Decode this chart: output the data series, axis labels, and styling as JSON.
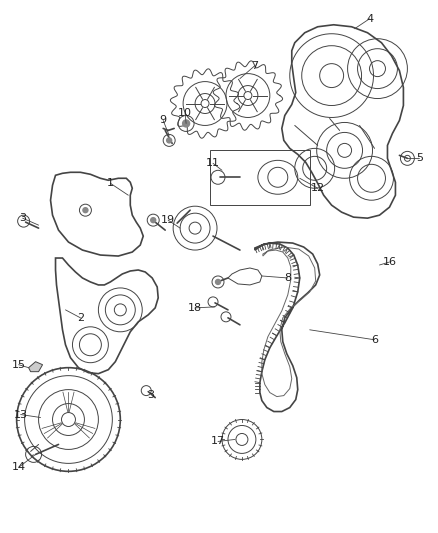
{
  "background_color": "#ffffff",
  "line_color": "#444444",
  "label_color": "#222222",
  "fig_width": 4.38,
  "fig_height": 5.33,
  "dpi": 100
}
